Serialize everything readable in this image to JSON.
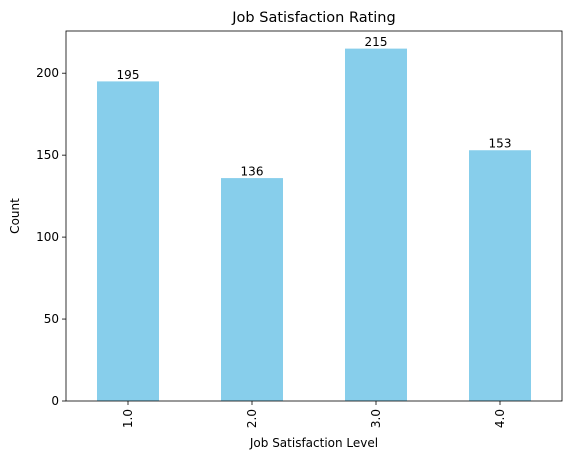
{
  "chart_data": {
    "type": "bar",
    "title": "Job Satisfaction Rating",
    "xlabel": "Job Satisfaction Level",
    "ylabel": "Count",
    "categories": [
      "1.0",
      "2.0",
      "3.0",
      "4.0"
    ],
    "values": [
      195,
      136,
      215,
      153
    ],
    "data_labels": [
      "195",
      "136",
      "215",
      "153"
    ],
    "ylim": [
      0,
      225.75
    ],
    "yticks": [
      0,
      50,
      100,
      150,
      200
    ],
    "ytick_labels": [
      "0",
      "50",
      "100",
      "150",
      "200"
    ],
    "bar_color": "#87ceeb",
    "grid": false,
    "legend": "none"
  }
}
